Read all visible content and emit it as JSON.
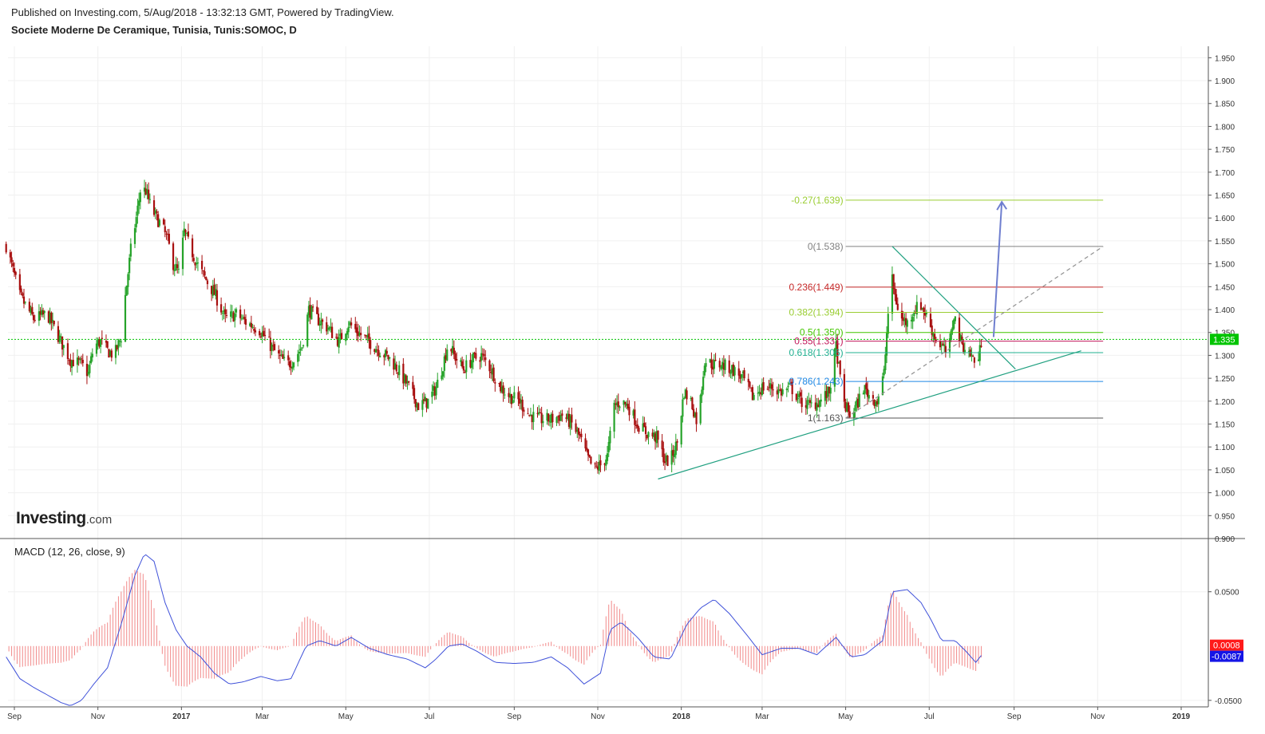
{
  "header": {
    "published": "Published on Investing.com, 5/Aug/2018 - 13:32:13 GMT, Powered by TradingView.",
    "symbol": "Societe Moderne De Ceramique, Tunisia, Tunis:SOMOC, D"
  },
  "logo": {
    "main": "Investing",
    "suffix": ".com"
  },
  "colors": {
    "up": "#26a32a",
    "down": "#a80f0f",
    "grid": "#f0f0f0",
    "last_price": "#00c400",
    "macd_line": "#3f51d9",
    "histogram": "#f28a8a"
  },
  "chart_data": [
    {
      "type": "candlestick",
      "price_axis": {
        "range": [
          0.9,
          1.975
        ],
        "ticks": [
          "1.950",
          "1.900",
          "1.850",
          "1.800",
          "1.750",
          "1.700",
          "1.650",
          "1.600",
          "1.550",
          "1.500",
          "1.450",
          "1.400",
          "1.350",
          "1.300",
          "1.250",
          "1.200",
          "1.150",
          "1.100",
          "1.050",
          "1.000",
          "0.950",
          "0.900"
        ]
      },
      "time_axis": {
        "ticks": [
          {
            "label": "Sep",
            "date": "2016-09-01",
            "bold": false
          },
          {
            "label": "Nov",
            "date": "2016-11-01",
            "bold": false
          },
          {
            "label": "2017",
            "date": "2017-01-01",
            "bold": true
          },
          {
            "label": "Mar",
            "date": "2017-03-01",
            "bold": false
          },
          {
            "label": "May",
            "date": "2017-05-01",
            "bold": false
          },
          {
            "label": "Jul",
            "date": "2017-07-01",
            "bold": false
          },
          {
            "label": "Sep",
            "date": "2017-09-01",
            "bold": false
          },
          {
            "label": "Nov",
            "date": "2017-11-01",
            "bold": false
          },
          {
            "label": "2018",
            "date": "2018-01-01",
            "bold": true
          },
          {
            "label": "Mar",
            "date": "2018-03-01",
            "bold": false
          },
          {
            "label": "May",
            "date": "2018-05-01",
            "bold": false
          },
          {
            "label": "Jul",
            "date": "2018-07-01",
            "bold": false
          },
          {
            "label": "Sep",
            "date": "2018-09-01",
            "bold": false
          },
          {
            "label": "Nov",
            "date": "2018-11-01",
            "bold": false
          },
          {
            "label": "2019",
            "date": "2019-01-01",
            "bold": true
          }
        ]
      },
      "last_price": {
        "value": 1.335,
        "label": "1.335"
      },
      "close_path": [
        [
          "2016-08-26",
          1.54
        ],
        [
          "2016-09-05",
          1.43
        ],
        [
          "2016-09-15",
          1.38
        ],
        [
          "2016-09-25",
          1.39
        ],
        [
          "2016-10-05",
          1.33
        ],
        [
          "2016-10-12",
          1.29
        ],
        [
          "2016-10-20",
          1.28
        ],
        [
          "2016-10-25",
          1.26
        ],
        [
          "2016-10-29",
          1.32
        ],
        [
          "2016-11-03",
          1.33
        ],
        [
          "2016-11-08",
          1.31
        ],
        [
          "2016-11-13",
          1.3
        ],
        [
          "2016-11-18",
          1.34
        ],
        [
          "2016-11-21",
          1.43
        ],
        [
          "2016-11-25",
          1.53
        ],
        [
          "2016-11-29",
          1.6
        ],
        [
          "2016-12-02",
          1.66
        ],
        [
          "2016-12-06",
          1.66
        ],
        [
          "2016-12-10",
          1.62
        ],
        [
          "2016-12-14",
          1.6
        ],
        [
          "2016-12-18",
          1.58
        ],
        [
          "2016-12-22",
          1.55
        ],
        [
          "2016-12-26",
          1.5
        ],
        [
          "2016-12-30",
          1.48
        ],
        [
          "2017-01-03",
          1.57
        ],
        [
          "2017-01-08",
          1.53
        ],
        [
          "2017-01-14",
          1.49
        ],
        [
          "2017-01-20",
          1.46
        ],
        [
          "2017-01-26",
          1.43
        ],
        [
          "2017-02-02",
          1.38
        ],
        [
          "2017-02-10",
          1.39
        ],
        [
          "2017-02-18",
          1.37
        ],
        [
          "2017-02-26",
          1.36
        ],
        [
          "2017-03-05",
          1.33
        ],
        [
          "2017-03-12",
          1.3
        ],
        [
          "2017-03-19",
          1.28
        ],
        [
          "2017-03-24",
          1.29
        ],
        [
          "2017-03-30",
          1.32
        ],
        [
          "2017-04-04",
          1.4
        ],
        [
          "2017-04-10",
          1.38
        ],
        [
          "2017-04-18",
          1.36
        ],
        [
          "2017-04-26",
          1.33
        ],
        [
          "2017-05-03",
          1.37
        ],
        [
          "2017-05-10",
          1.35
        ],
        [
          "2017-05-18",
          1.33
        ],
        [
          "2017-05-26",
          1.31
        ],
        [
          "2017-06-03",
          1.29
        ],
        [
          "2017-06-10",
          1.26
        ],
        [
          "2017-06-16",
          1.23
        ],
        [
          "2017-06-23",
          1.19
        ],
        [
          "2017-06-30",
          1.2
        ],
        [
          "2017-07-06",
          1.23
        ],
        [
          "2017-07-11",
          1.28
        ],
        [
          "2017-07-15",
          1.33
        ],
        [
          "2017-07-19",
          1.3
        ],
        [
          "2017-07-26",
          1.27
        ],
        [
          "2017-08-01",
          1.29
        ],
        [
          "2017-08-08",
          1.3
        ],
        [
          "2017-08-15",
          1.27
        ],
        [
          "2017-08-22",
          1.23
        ],
        [
          "2017-08-29",
          1.21
        ],
        [
          "2017-09-05",
          1.2
        ],
        [
          "2017-09-12",
          1.17
        ],
        [
          "2017-09-20",
          1.16
        ],
        [
          "2017-09-28",
          1.16
        ],
        [
          "2017-10-06",
          1.17
        ],
        [
          "2017-10-13",
          1.15
        ],
        [
          "2017-10-19",
          1.12
        ],
        [
          "2017-10-24",
          1.08
        ],
        [
          "2017-10-29",
          1.05
        ],
        [
          "2017-11-03",
          1.06
        ],
        [
          "2017-11-08",
          1.08
        ],
        [
          "2017-11-13",
          1.19
        ],
        [
          "2017-11-18",
          1.2
        ],
        [
          "2017-11-23",
          1.19
        ],
        [
          "2017-11-30",
          1.15
        ],
        [
          "2017-12-07",
          1.13
        ],
        [
          "2017-12-14",
          1.12
        ],
        [
          "2017-12-20",
          1.07
        ],
        [
          "2017-12-24",
          1.07
        ],
        [
          "2017-12-29",
          1.11
        ],
        [
          "2018-01-03",
          1.22
        ],
        [
          "2018-01-08",
          1.2
        ],
        [
          "2018-01-13",
          1.15
        ],
        [
          "2018-01-18",
          1.29
        ],
        [
          "2018-01-24",
          1.28
        ],
        [
          "2018-01-30",
          1.28
        ],
        [
          "2018-02-07",
          1.27
        ],
        [
          "2018-02-15",
          1.25
        ],
        [
          "2018-02-22",
          1.21
        ],
        [
          "2018-03-01",
          1.23
        ],
        [
          "2018-03-08",
          1.23
        ],
        [
          "2018-03-15",
          1.22
        ],
        [
          "2018-03-22",
          1.23
        ],
        [
          "2018-03-29",
          1.2
        ],
        [
          "2018-04-05",
          1.19
        ],
        [
          "2018-04-12",
          1.2
        ],
        [
          "2018-04-19",
          1.22
        ],
        [
          "2018-04-24",
          1.32
        ],
        [
          "2018-04-29",
          1.2
        ],
        [
          "2018-05-04",
          1.17
        ],
        [
          "2018-05-09",
          1.19
        ],
        [
          "2018-05-14",
          1.23
        ],
        [
          "2018-05-19",
          1.21
        ],
        [
          "2018-05-24",
          1.2
        ],
        [
          "2018-05-29",
          1.26
        ],
        [
          "2018-06-03",
          1.48
        ],
        [
          "2018-06-06",
          1.43
        ],
        [
          "2018-06-10",
          1.38
        ],
        [
          "2018-06-15",
          1.37
        ],
        [
          "2018-06-20",
          1.4
        ],
        [
          "2018-06-25",
          1.41
        ],
        [
          "2018-06-30",
          1.38
        ],
        [
          "2018-07-05",
          1.34
        ],
        [
          "2018-07-10",
          1.32
        ],
        [
          "2018-07-15",
          1.3
        ],
        [
          "2018-07-19",
          1.39
        ],
        [
          "2018-07-24",
          1.33
        ],
        [
          "2018-07-29",
          1.31
        ],
        [
          "2018-08-03",
          1.29
        ],
        [
          "2018-08-06",
          1.29
        ],
        [
          "2018-08-08",
          1.33
        ]
      ],
      "fibonacci": [
        {
          "ratio": "-0.27",
          "value": 1.639,
          "label": "-0.27(1.639)",
          "color": "#9acd32"
        },
        {
          "ratio": "0",
          "value": 1.538,
          "label": "0(1.538)",
          "color": "#808080"
        },
        {
          "ratio": "0.236",
          "value": 1.449,
          "label": "0.236(1.449)",
          "color": "#c62828"
        },
        {
          "ratio": "0.382",
          "value": 1.394,
          "label": "0.382(1.394)",
          "color": "#9acd32"
        },
        {
          "ratio": "0.5",
          "value": 1.35,
          "label": "0.5(1.350)",
          "color": "#43c700"
        },
        {
          "ratio": "0.55",
          "value": 1.331,
          "label": "0.55(1.331)",
          "color": "#c2185b"
        },
        {
          "ratio": "0.618",
          "value": 1.306,
          "label": "0.618(1.306)",
          "color": "#20b090"
        },
        {
          "ratio": "0.786",
          "value": 1.243,
          "label": "0.786(1.243)",
          "color": "#1e88e5"
        },
        {
          "ratio": "1",
          "value": 1.163,
          "label": "1(1.163)",
          "color": "#555555"
        }
      ],
      "fib_range": {
        "start": "2018-05-01",
        "end": "2018-11-05"
      },
      "trendlines": [
        {
          "name": "support",
          "from": [
            "2017-12-15",
            1.03
          ],
          "to": [
            "2018-10-20",
            1.31
          ],
          "color": "#20a080"
        },
        {
          "name": "resistance",
          "from": [
            "2018-06-04",
            1.538
          ],
          "to": [
            "2018-09-02",
            1.27
          ],
          "color": "#20a080"
        },
        {
          "name": "fib-diagonal",
          "from": [
            "2018-05-01",
            1.163
          ],
          "to": [
            "2018-11-05",
            1.538
          ],
          "color": "#909090",
          "dashed": true
        }
      ],
      "arrow": {
        "from": [
          "2018-08-17",
          1.34
        ],
        "to": [
          "2018-08-23",
          1.635
        ],
        "color": "#6f7fcf"
      }
    },
    {
      "type": "line",
      "title": "MACD (12, 26, close, 9)",
      "value_axis": {
        "range": [
          -0.056,
          0.099
        ],
        "ticks": [
          "0.0500",
          "-0.0500"
        ]
      },
      "histogram_label": "0.0008",
      "macd_label": "-0.0087",
      "macd_line": [
        [
          "2016-08-26",
          -0.01
        ],
        [
          "2016-09-05",
          -0.03
        ],
        [
          "2016-09-15",
          -0.038
        ],
        [
          "2016-09-25",
          -0.045
        ],
        [
          "2016-10-05",
          -0.052
        ],
        [
          "2016-10-12",
          -0.055
        ],
        [
          "2016-10-20",
          -0.05
        ],
        [
          "2016-10-29",
          -0.035
        ],
        [
          "2016-11-08",
          -0.02
        ],
        [
          "2016-11-18",
          0.02
        ],
        [
          "2016-11-28",
          0.065
        ],
        [
          "2016-12-05",
          0.085
        ],
        [
          "2016-12-12",
          0.078
        ],
        [
          "2016-12-20",
          0.04
        ],
        [
          "2016-12-28",
          0.015
        ],
        [
          "2017-01-05",
          0.0
        ],
        [
          "2017-01-15",
          -0.01
        ],
        [
          "2017-01-25",
          -0.025
        ],
        [
          "2017-02-05",
          -0.035
        ],
        [
          "2017-02-15",
          -0.033
        ],
        [
          "2017-02-28",
          -0.028
        ],
        [
          "2017-03-12",
          -0.032
        ],
        [
          "2017-03-22",
          -0.03
        ],
        [
          "2017-04-02",
          0.0
        ],
        [
          "2017-04-12",
          0.005
        ],
        [
          "2017-04-24",
          0.0
        ],
        [
          "2017-05-05",
          0.008
        ],
        [
          "2017-05-18",
          -0.002
        ],
        [
          "2017-06-01",
          -0.008
        ],
        [
          "2017-06-15",
          -0.012
        ],
        [
          "2017-06-28",
          -0.02
        ],
        [
          "2017-07-05",
          -0.013
        ],
        [
          "2017-07-15",
          0.0
        ],
        [
          "2017-07-25",
          0.002
        ],
        [
          "2017-08-05",
          -0.005
        ],
        [
          "2017-08-18",
          -0.015
        ],
        [
          "2017-09-01",
          -0.016
        ],
        [
          "2017-09-15",
          -0.015
        ],
        [
          "2017-09-28",
          -0.01
        ],
        [
          "2017-10-10",
          -0.02
        ],
        [
          "2017-10-22",
          -0.035
        ],
        [
          "2017-11-03",
          -0.025
        ],
        [
          "2017-11-10",
          0.015
        ],
        [
          "2017-11-18",
          0.022
        ],
        [
          "2017-11-30",
          0.008
        ],
        [
          "2017-12-12",
          -0.01
        ],
        [
          "2017-12-24",
          -0.012
        ],
        [
          "2018-01-05",
          0.02
        ],
        [
          "2018-01-15",
          0.035
        ],
        [
          "2018-01-25",
          0.043
        ],
        [
          "2018-02-05",
          0.03
        ],
        [
          "2018-02-18",
          0.01
        ],
        [
          "2018-03-01",
          -0.008
        ],
        [
          "2018-03-15",
          -0.002
        ],
        [
          "2018-03-28",
          -0.002
        ],
        [
          "2018-04-10",
          -0.008
        ],
        [
          "2018-04-24",
          0.008
        ],
        [
          "2018-05-05",
          -0.01
        ],
        [
          "2018-05-15",
          -0.008
        ],
        [
          "2018-05-28",
          0.005
        ],
        [
          "2018-06-04",
          0.05
        ],
        [
          "2018-06-15",
          0.052
        ],
        [
          "2018-06-25",
          0.04
        ],
        [
          "2018-07-02",
          0.025
        ],
        [
          "2018-07-10",
          0.005
        ],
        [
          "2018-07-20",
          0.005
        ],
        [
          "2018-07-28",
          -0.005
        ],
        [
          "2018-08-04",
          -0.015
        ],
        [
          "2018-08-08",
          -0.0087
        ]
      ]
    }
  ]
}
